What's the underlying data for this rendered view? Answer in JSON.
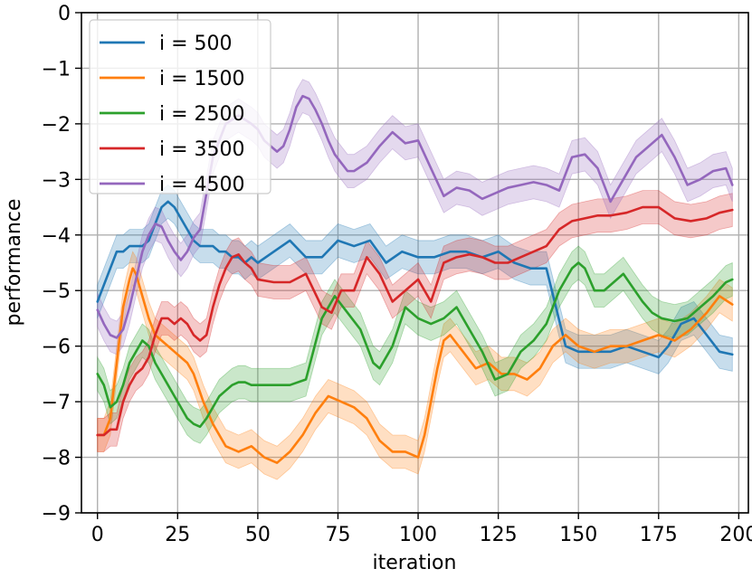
{
  "chart_data": {
    "type": "line",
    "title": "",
    "xlabel": "iteration",
    "ylabel": "performance",
    "xlim": [
      -5,
      203
    ],
    "ylim": [
      -9,
      0
    ],
    "xticks": [
      0,
      25,
      50,
      75,
      100,
      125,
      150,
      175,
      200
    ],
    "yticks": [
      0,
      -1,
      -2,
      -3,
      -4,
      -5,
      -6,
      -7,
      -8,
      -9
    ],
    "xtick_labels": [
      "0",
      "25",
      "50",
      "75",
      "100",
      "125",
      "150",
      "175",
      "200"
    ],
    "ytick_labels": [
      "0",
      "−1",
      "−2",
      "−3",
      "−4",
      "−5",
      "−6",
      "−7",
      "−8",
      "−9"
    ],
    "grid": true,
    "legend": "top-left",
    "band_halfwidth": 0.3,
    "series": [
      {
        "name": "i = 500",
        "color": "#1f77b4",
        "x": [
          0,
          2,
          4,
          6,
          8,
          10,
          12,
          14,
          16,
          18,
          20,
          22,
          24,
          26,
          28,
          30,
          32,
          34,
          36,
          38,
          40,
          42,
          44,
          46,
          48,
          50,
          55,
          60,
          65,
          70,
          75,
          80,
          85,
          90,
          95,
          100,
          105,
          110,
          115,
          120,
          125,
          130,
          135,
          140,
          143,
          146,
          150,
          155,
          160,
          165,
          170,
          175,
          178,
          182,
          186,
          190,
          194,
          198
        ],
        "y": [
          -5.2,
          -4.9,
          -4.6,
          -4.3,
          -4.3,
          -4.2,
          -4.2,
          -4.2,
          -4.1,
          -3.8,
          -3.5,
          -3.4,
          -3.5,
          -3.7,
          -3.9,
          -4.1,
          -4.2,
          -4.2,
          -4.2,
          -4.3,
          -4.3,
          -4.4,
          -4.4,
          -4.5,
          -4.4,
          -4.5,
          -4.3,
          -4.1,
          -4.4,
          -4.4,
          -4.1,
          -4.2,
          -4.1,
          -4.5,
          -4.3,
          -4.4,
          -4.4,
          -4.3,
          -4.3,
          -4.4,
          -4.3,
          -4.5,
          -4.6,
          -4.6,
          -5.3,
          -6.0,
          -6.1,
          -6.1,
          -6.1,
          -6.0,
          -6.1,
          -6.2,
          -6.0,
          -5.6,
          -5.5,
          -5.8,
          -6.1,
          -6.15
        ]
      },
      {
        "name": "i = 1500",
        "color": "#ff7f0e",
        "x": [
          0,
          2,
          4,
          6,
          8,
          10,
          11,
          12,
          14,
          16,
          18,
          20,
          22,
          24,
          26,
          28,
          30,
          33,
          36,
          40,
          44,
          48,
          52,
          56,
          60,
          64,
          68,
          72,
          76,
          80,
          84,
          88,
          92,
          96,
          100,
          102,
          104,
          106,
          108,
          110,
          114,
          118,
          122,
          126,
          130,
          134,
          138,
          142,
          146,
          150,
          155,
          160,
          165,
          170,
          175,
          180,
          185,
          190,
          194,
          198
        ],
        "y": [
          -7.6,
          -7.6,
          -7.3,
          -6.3,
          -5.3,
          -4.8,
          -4.6,
          -4.7,
          -5.1,
          -5.5,
          -5.8,
          -5.9,
          -6.0,
          -6.1,
          -6.2,
          -6.3,
          -6.5,
          -7.0,
          -7.4,
          -7.8,
          -7.9,
          -7.8,
          -8.0,
          -8.1,
          -7.9,
          -7.6,
          -7.2,
          -6.9,
          -7.0,
          -7.1,
          -7.3,
          -7.7,
          -7.9,
          -7.9,
          -8.0,
          -7.6,
          -7.0,
          -6.4,
          -5.9,
          -5.8,
          -6.1,
          -6.4,
          -6.3,
          -6.5,
          -6.5,
          -6.6,
          -6.4,
          -6.0,
          -5.8,
          -6.0,
          -6.1,
          -6.0,
          -6.0,
          -5.9,
          -5.8,
          -5.9,
          -5.7,
          -5.4,
          -5.1,
          -5.25
        ]
      },
      {
        "name": "i = 2500",
        "color": "#2ca02c",
        "x": [
          0,
          2,
          4,
          6,
          8,
          10,
          12,
          14,
          16,
          18,
          20,
          22,
          24,
          26,
          28,
          30,
          32,
          34,
          36,
          38,
          40,
          42,
          44,
          46,
          48,
          50,
          55,
          60,
          65,
          70,
          74,
          78,
          82,
          86,
          88,
          92,
          96,
          100,
          104,
          108,
          112,
          116,
          120,
          124,
          128,
          132,
          136,
          140,
          144,
          148,
          150,
          152,
          155,
          158,
          161,
          164,
          167,
          170,
          173,
          176,
          180,
          184,
          188,
          192,
          196,
          198
        ],
        "y": [
          -6.5,
          -6.7,
          -7.1,
          -7.0,
          -6.7,
          -6.3,
          -6.1,
          -5.9,
          -6.0,
          -6.3,
          -6.5,
          -6.7,
          -6.9,
          -7.1,
          -7.3,
          -7.4,
          -7.45,
          -7.3,
          -7.1,
          -6.9,
          -6.8,
          -6.7,
          -6.65,
          -6.65,
          -6.7,
          -6.7,
          -6.7,
          -6.7,
          -6.6,
          -5.5,
          -5.1,
          -5.4,
          -5.7,
          -6.3,
          -6.4,
          -6.0,
          -5.3,
          -5.5,
          -5.6,
          -5.5,
          -5.3,
          -5.7,
          -6.1,
          -6.6,
          -6.5,
          -6.1,
          -5.9,
          -5.6,
          -5.0,
          -4.6,
          -4.5,
          -4.6,
          -5.0,
          -5.0,
          -4.85,
          -4.7,
          -4.95,
          -5.2,
          -5.4,
          -5.5,
          -5.55,
          -5.5,
          -5.3,
          -5.1,
          -4.85,
          -4.8
        ]
      },
      {
        "name": "i = 3500",
        "color": "#d62728",
        "x": [
          0,
          2,
          4,
          6,
          8,
          10,
          12,
          14,
          16,
          18,
          20,
          22,
          24,
          26,
          28,
          30,
          32,
          34,
          36,
          38,
          40,
          42,
          44,
          46,
          48,
          50,
          55,
          60,
          65,
          70,
          73,
          76,
          80,
          84,
          88,
          92,
          96,
          100,
          104,
          108,
          112,
          116,
          120,
          124,
          128,
          132,
          136,
          140,
          144,
          148,
          152,
          156,
          160,
          165,
          170,
          175,
          180,
          185,
          190,
          194,
          198
        ],
        "y": [
          -7.6,
          -7.6,
          -7.5,
          -7.5,
          -7.0,
          -6.7,
          -6.5,
          -6.4,
          -6.2,
          -5.8,
          -5.5,
          -5.5,
          -5.6,
          -5.5,
          -5.6,
          -5.8,
          -5.9,
          -5.8,
          -5.3,
          -4.9,
          -4.6,
          -4.4,
          -4.35,
          -4.5,
          -4.6,
          -4.8,
          -4.85,
          -4.85,
          -4.7,
          -5.3,
          -5.4,
          -5.0,
          -5.0,
          -4.4,
          -4.7,
          -5.2,
          -5.0,
          -4.8,
          -5.2,
          -4.5,
          -4.4,
          -4.35,
          -4.4,
          -4.5,
          -4.5,
          -4.4,
          -4.3,
          -4.2,
          -3.9,
          -3.75,
          -3.7,
          -3.65,
          -3.65,
          -3.6,
          -3.5,
          -3.5,
          -3.7,
          -3.75,
          -3.7,
          -3.6,
          -3.55
        ]
      },
      {
        "name": "i = 4500",
        "color": "#9467bd",
        "x": [
          0,
          2,
          4,
          6,
          8,
          10,
          12,
          14,
          16,
          18,
          20,
          22,
          24,
          26,
          28,
          30,
          32,
          36,
          40,
          44,
          48,
          50,
          52,
          54,
          56,
          58,
          60,
          62,
          64,
          66,
          68,
          70,
          72,
          74,
          76,
          78,
          80,
          84,
          88,
          92,
          96,
          100,
          104,
          108,
          112,
          116,
          120,
          124,
          128,
          132,
          136,
          140,
          144,
          148,
          152,
          156,
          160,
          164,
          168,
          172,
          176,
          180,
          184,
          188,
          192,
          196,
          198
        ],
        "y": [
          -5.35,
          -5.6,
          -5.8,
          -5.85,
          -5.7,
          -5.3,
          -4.8,
          -4.3,
          -4.0,
          -3.8,
          -3.85,
          -4.1,
          -4.3,
          -4.45,
          -4.3,
          -4.05,
          -3.9,
          -2.6,
          -2.0,
          -1.85,
          -2.0,
          -2.1,
          -2.3,
          -2.4,
          -2.5,
          -2.4,
          -2.1,
          -1.7,
          -1.5,
          -1.55,
          -1.75,
          -2.0,
          -2.3,
          -2.55,
          -2.7,
          -2.85,
          -2.85,
          -2.7,
          -2.4,
          -2.15,
          -2.35,
          -2.3,
          -2.8,
          -3.3,
          -3.15,
          -3.2,
          -3.35,
          -3.25,
          -3.15,
          -3.1,
          -3.05,
          -3.1,
          -3.2,
          -2.6,
          -2.55,
          -2.8,
          -3.4,
          -3.0,
          -2.6,
          -2.4,
          -2.2,
          -2.6,
          -3.1,
          -3.0,
          -2.85,
          -2.8,
          -3.1
        ]
      }
    ]
  }
}
